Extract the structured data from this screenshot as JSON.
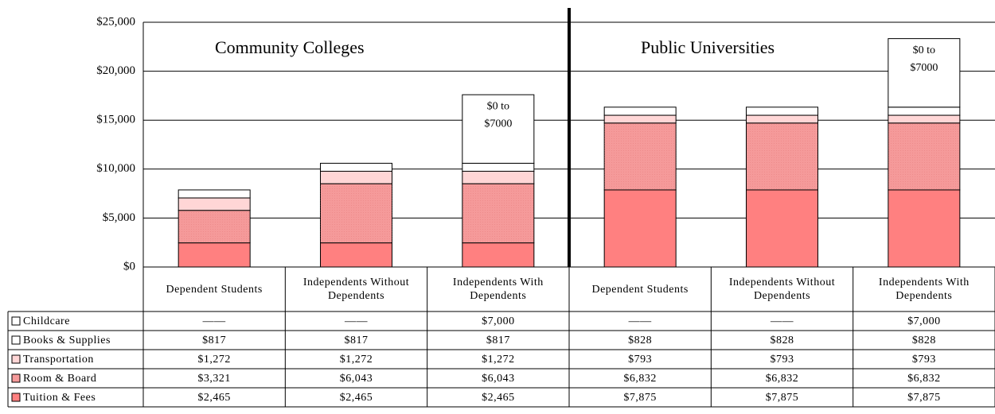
{
  "chart_data": {
    "type": "stacked_bar",
    "categories": [
      "Dependent Students",
      "Independents Without Dependents",
      "Independents With Dependents",
      "Dependent Students",
      "Independents Without Dependents",
      "Independents With Dependents"
    ],
    "groups": [
      "Community Colleges",
      "Public Universities"
    ],
    "series": [
      {
        "name": "Tuition & Fees",
        "color": "#ff8080",
        "values": [
          2465,
          2465,
          2465,
          7875,
          7875,
          7875
        ],
        "value_labels": [
          "$2,465",
          "$2,465",
          "$2,465",
          "$7,875",
          "$7,875",
          "$7,875"
        ]
      },
      {
        "name": "Room & Board",
        "color": "#f59a9a",
        "values": [
          3321,
          6043,
          6043,
          6832,
          6832,
          6832
        ],
        "value_labels": [
          "$3,321",
          "$6,043",
          "$6,043",
          "$6,832",
          "$6,832",
          "$6,832"
        ]
      },
      {
        "name": "Transportation",
        "color": "#ffd6d6",
        "values": [
          1272,
          1272,
          1272,
          793,
          793,
          793
        ],
        "value_labels": [
          "$1,272",
          "$1,272",
          "$1,272",
          "$793",
          "$793",
          "$793"
        ]
      },
      {
        "name": "Books & Supplies",
        "color": "#ffffff",
        "values": [
          817,
          817,
          817,
          828,
          828,
          828
        ],
        "value_labels": [
          "$817",
          "$817",
          "$817",
          "$828",
          "$828",
          "$828"
        ]
      },
      {
        "name": "Childcare",
        "color": "#ffffff",
        "values": [
          null,
          null,
          7000,
          null,
          null,
          7000
        ],
        "value_labels": [
          "——",
          "——",
          "$7,000",
          "——",
          "——",
          "$7,000"
        ]
      }
    ],
    "annotation": [
      "$0 to",
      "$7000"
    ],
    "ylim": [
      0,
      25000
    ],
    "yticks": [
      {
        "value": 0,
        "label": "$0"
      },
      {
        "value": 5000,
        "label": "$5,000"
      },
      {
        "value": 10000,
        "label": "$10,000"
      },
      {
        "value": 15000,
        "label": "$15,000"
      },
      {
        "value": 20000,
        "label": "$20,000"
      },
      {
        "value": 25000,
        "label": "$25,000"
      }
    ],
    "grid": true
  }
}
